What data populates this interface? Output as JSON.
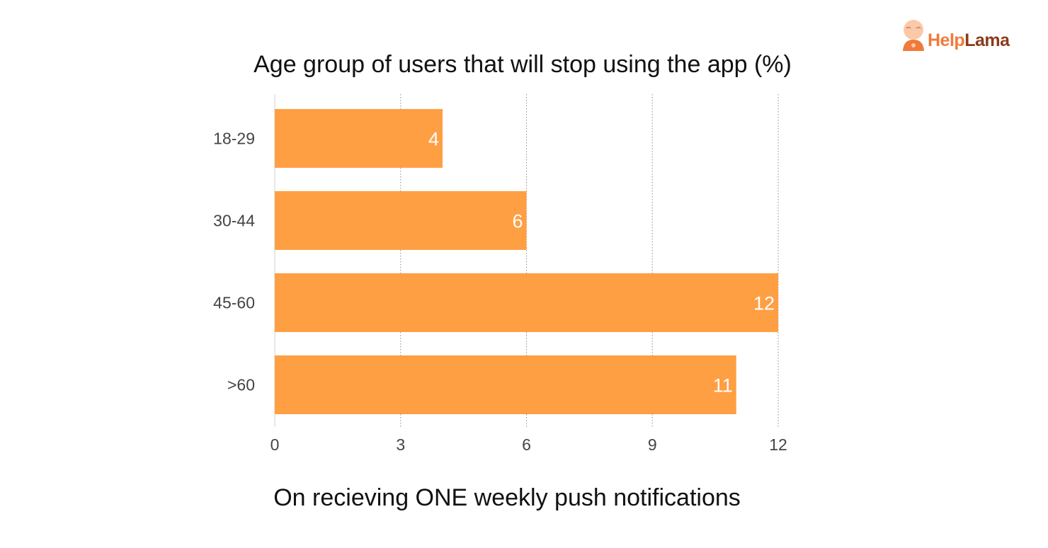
{
  "brand": {
    "name_part1": "Help",
    "name_part2": "Lama",
    "logo_icon": "monk-mascot-icon",
    "colors": {
      "primary": "#f07a3a",
      "secondary": "#8a3b1c"
    }
  },
  "chart_data": {
    "type": "bar",
    "orientation": "horizontal",
    "title": "Age group of users that will stop using the app (%)",
    "xlabel": "On recieving ONE weekly push notifications",
    "ylabel": "",
    "categories": [
      "18-29",
      "30-44",
      "45-60",
      ">60"
    ],
    "values": [
      4,
      6,
      12,
      11
    ],
    "xlim": [
      0,
      12
    ],
    "xticks": [
      0,
      3,
      6,
      9,
      12
    ],
    "grid": true,
    "grid_style": "dotted vertical",
    "legend": "none",
    "data_labels": true,
    "bar_color": "#ff9f43",
    "label_color": "#ffffff"
  }
}
